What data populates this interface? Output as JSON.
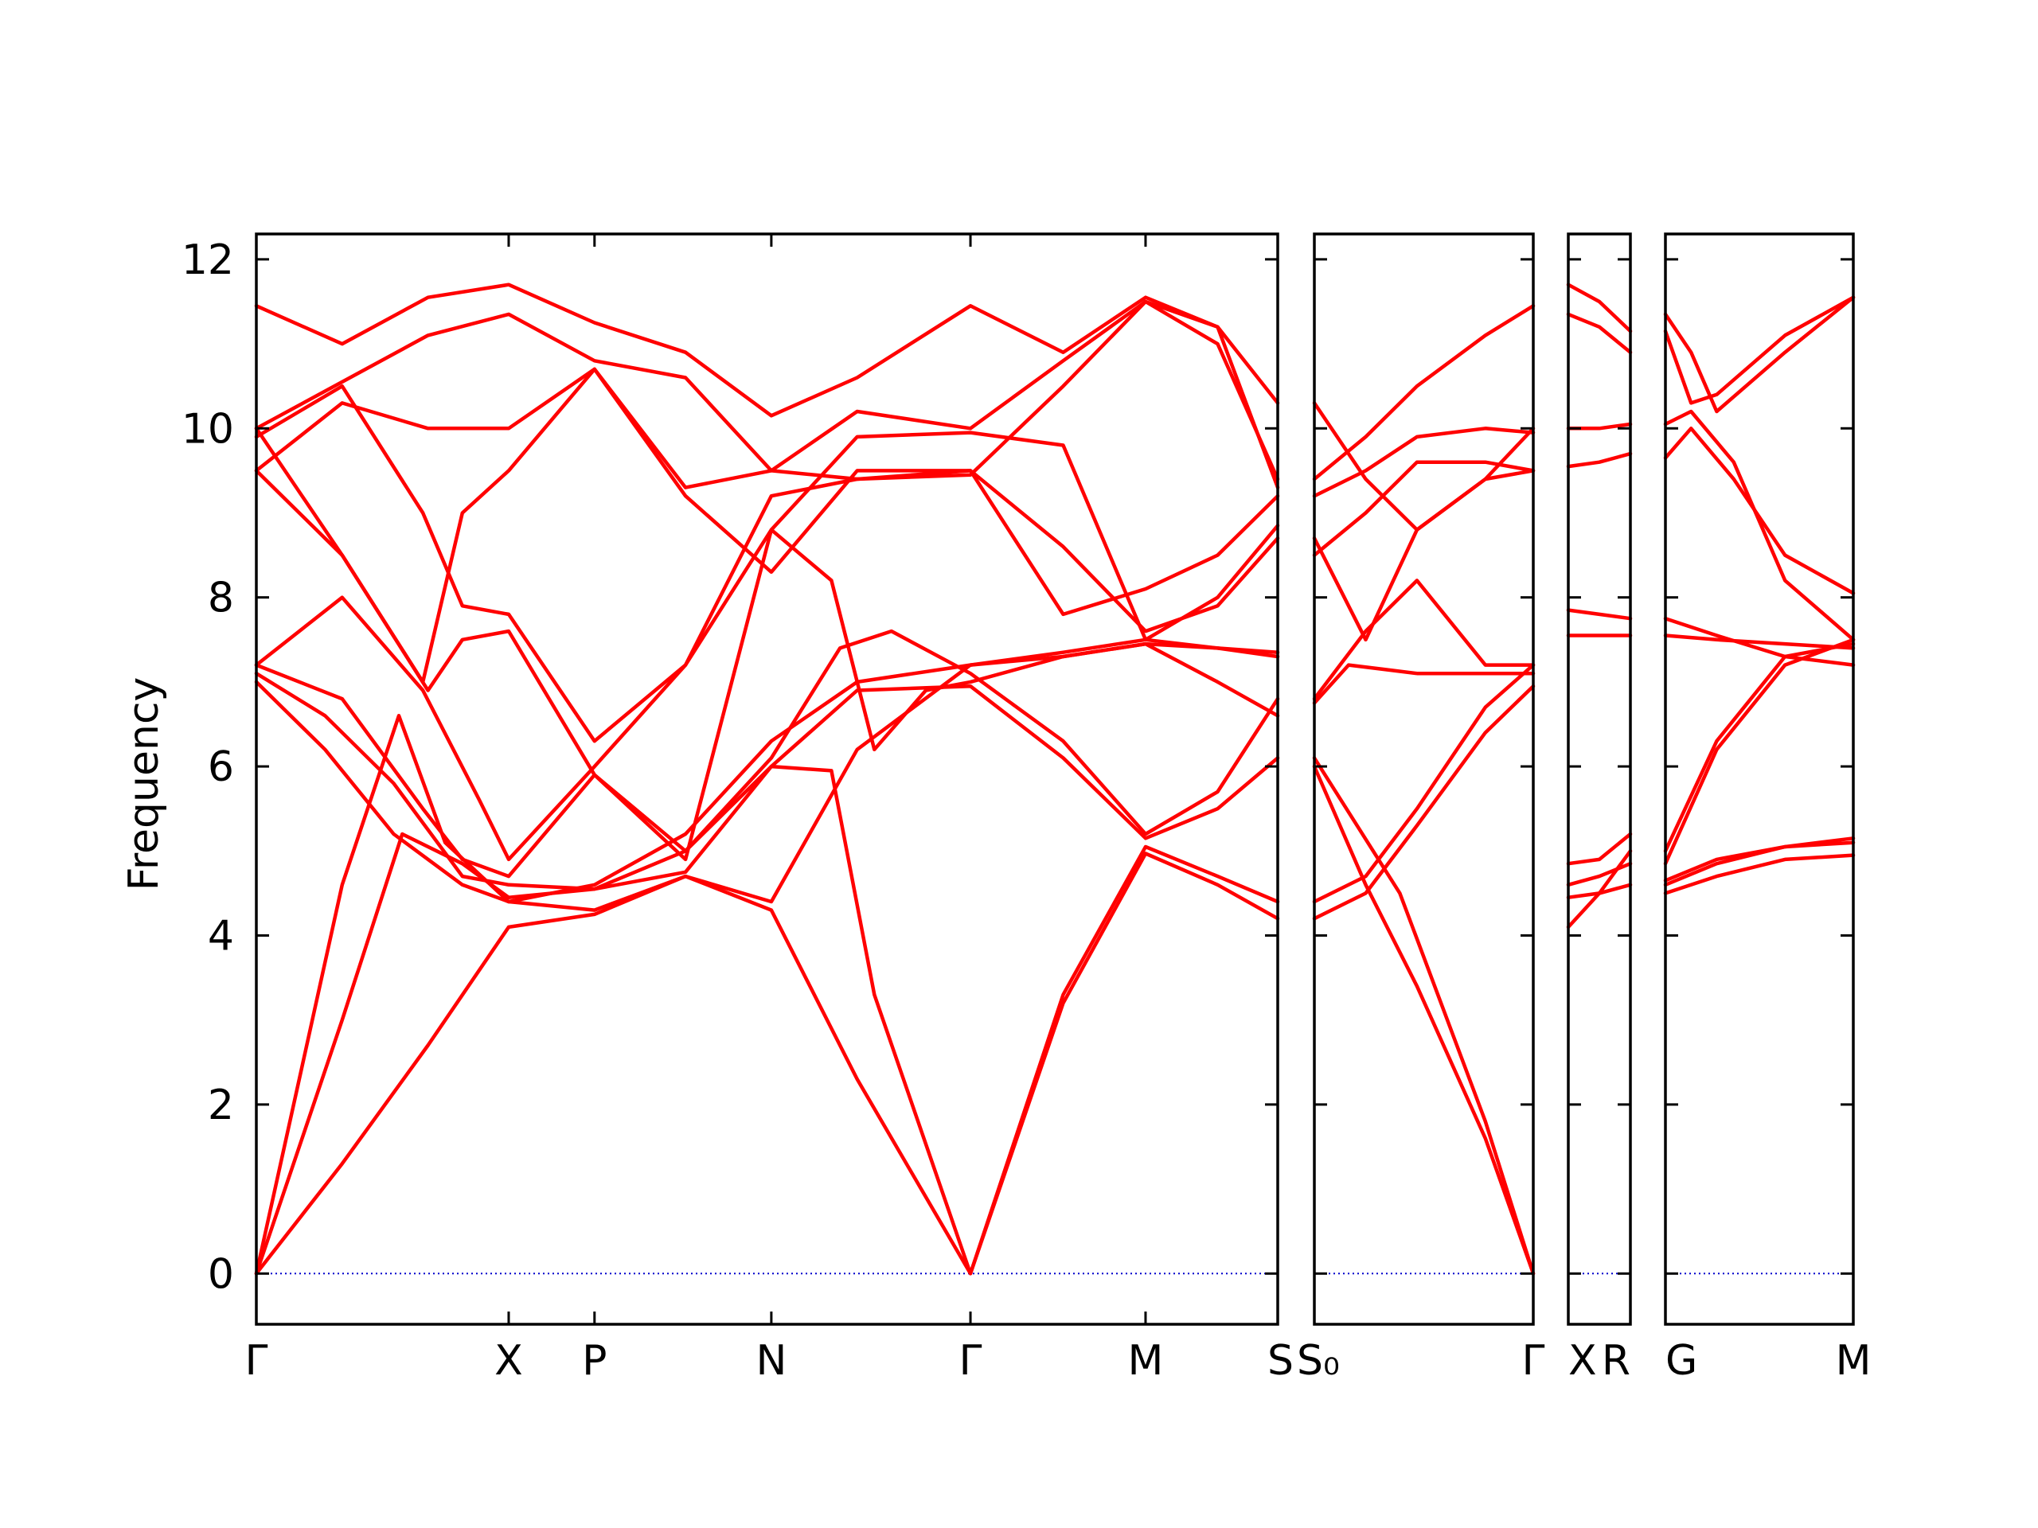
{
  "chart_data": {
    "type": "line",
    "ylabel": "Frequency",
    "ylim": [
      -0.6,
      12.3
    ],
    "yticks": [
      0,
      2,
      4,
      6,
      8,
      10,
      12
    ],
    "ytick_labels": [
      "0",
      "2",
      "4",
      "6",
      "8",
      "10",
      "12"
    ],
    "grid": false,
    "colors": {
      "bands": "#ff0000",
      "zero_line": "#0000cc",
      "axes": "#000000"
    },
    "panels": [
      {
        "labels": [
          "Γ",
          "X",
          "P",
          "N",
          "Γ",
          "M",
          "S"
        ],
        "label_x": [
          0,
          1.47,
          1.97,
          3.0,
          4.16,
          5.18,
          5.95
        ],
        "xlim": [
          0,
          5.95
        ],
        "bands": [
          {
            "x": [
              0,
              0.5,
              1.0,
              1.47,
              1.97,
              2.5,
              3.0,
              3.5,
              4.16,
              4.7,
              5.18,
              5.6,
              5.95
            ],
            "y": [
              0,
              1.3,
              2.7,
              4.1,
              4.25,
              4.7,
              4.3,
              2.3,
              0,
              3.2,
              4.97,
              4.6,
              4.2
            ]
          },
          {
            "x": [
              0,
              0.5,
              0.85,
              1.2,
              1.47,
              1.97,
              2.5,
              3.0,
              3.35,
              3.6,
              4.16,
              4.7,
              5.18,
              5.6,
              5.95
            ],
            "y": [
              0,
              3.0,
              5.2,
              4.85,
              4.45,
              4.55,
              5.0,
              6.0,
              5.95,
              3.3,
              0,
              3.3,
              5.05,
              4.7,
              4.4
            ]
          },
          {
            "x": [
              0,
              0.5,
              0.83,
              1.1,
              1.47,
              1.97,
              2.5,
              3.0,
              3.5,
              4.16,
              4.7,
              5.18,
              5.6,
              5.95
            ],
            "y": [
              0,
              4.6,
              6.6,
              5.1,
              4.4,
              4.6,
              5.2,
              6.3,
              7.0,
              7.2,
              7.35,
              7.5,
              7.4,
              7.3
            ]
          },
          {
            "x": [
              0,
              0.4,
              0.8,
              1.2,
              1.47,
              1.97,
              2.5,
              3.0,
              3.5,
              4.16,
              4.7,
              5.18,
              5.6,
              5.95
            ],
            "y": [
              7.0,
              6.2,
              5.2,
              4.6,
              4.4,
              4.3,
              4.7,
              4.4,
              6.2,
              7.2,
              7.3,
              7.45,
              7.4,
              7.35
            ]
          },
          {
            "x": [
              0,
              0.4,
              0.8,
              1.2,
              1.47,
              1.97,
              2.5,
              3.0,
              3.5,
              4.16,
              4.7,
              5.18,
              5.6,
              5.95
            ],
            "y": [
              7.1,
              6.6,
              5.8,
              4.7,
              4.6,
              4.55,
              4.75,
              6.0,
              6.9,
              6.95,
              6.1,
              5.15,
              5.5,
              6.1
            ]
          },
          {
            "x": [
              0,
              0.5,
              0.97,
              1.2,
              1.47,
              1.97,
              2.5,
              3.0,
              3.4,
              3.7,
              4.16,
              4.7,
              5.18,
              5.6,
              5.95
            ],
            "y": [
              7.2,
              6.8,
              5.5,
              4.9,
              4.7,
              5.9,
              5.0,
              6.1,
              7.4,
              7.6,
              7.1,
              6.3,
              5.2,
              5.7,
              6.8
            ]
          },
          {
            "x": [
              0,
              0.5,
              0.97,
              1.3,
              1.47,
              1.97,
              2.5,
              3.0,
              3.35,
              3.6,
              3.9,
              4.16,
              4.7,
              5.18,
              5.6,
              5.95
            ],
            "y": [
              7.2,
              8.0,
              6.9,
              5.6,
              4.9,
              6.0,
              7.2,
              8.8,
              8.2,
              6.2,
              6.9,
              7.0,
              7.3,
              7.45,
              7.0,
              6.6
            ]
          },
          {
            "x": [
              0,
              0.5,
              1.0,
              1.2,
              1.47,
              1.97,
              2.5,
              3.0,
              3.5,
              4.16,
              4.7,
              5.18,
              5.6,
              5.95
            ],
            "y": [
              9.5,
              8.5,
              6.9,
              7.5,
              7.6,
              5.9,
              4.9,
              8.8,
              9.9,
              9.95,
              9.8,
              7.5,
              8.0,
              8.85
            ]
          },
          {
            "x": [
              0,
              0.5,
              0.97,
              1.2,
              1.47,
              1.97,
              2.5,
              3.0,
              3.5,
              4.16,
              4.7,
              5.18,
              5.6,
              5.95
            ],
            "y": [
              10.0,
              8.5,
              7.0,
              9.0,
              9.5,
              10.7,
              9.2,
              8.3,
              9.5,
              9.5,
              8.6,
              7.6,
              7.9,
              8.7
            ]
          },
          {
            "x": [
              0,
              0.5,
              0.97,
              1.2,
              1.47,
              1.97,
              2.5,
              3.0,
              3.5,
              4.16,
              4.7,
              5.18,
              5.6,
              5.95
            ],
            "y": [
              9.9,
              10.5,
              9.0,
              7.9,
              7.8,
              6.3,
              7.2,
              9.2,
              9.4,
              9.45,
              10.5,
              11.5,
              11.2,
              9.3
            ]
          },
          {
            "x": [
              0,
              0.5,
              1.0,
              1.2,
              1.47,
              1.97,
              2.5,
              3.0,
              3.5,
              4.16,
              4.7,
              5.18,
              5.6,
              5.95
            ],
            "y": [
              9.5,
              10.3,
              10.0,
              10.0,
              10.0,
              10.7,
              9.3,
              9.5,
              10.2,
              10.0,
              10.8,
              11.5,
              11.0,
              9.4
            ]
          },
          {
            "x": [
              0,
              0.5,
              1.0,
              1.47,
              1.97,
              2.5,
              3.0,
              3.5,
              4.16,
              4.7,
              5.18,
              5.6,
              5.95
            ],
            "y": [
              10.0,
              10.55,
              11.1,
              11.35,
              10.8,
              10.6,
              9.5,
              9.4,
              9.5,
              7.8,
              8.1,
              8.5,
              9.2
            ]
          },
          {
            "x": [
              0,
              0.5,
              1.0,
              1.47,
              1.97,
              2.5,
              3.0,
              3.5,
              4.16,
              4.7,
              5.18,
              5.6,
              5.95
            ],
            "y": [
              11.45,
              11.0,
              11.55,
              11.7,
              11.25,
              10.9,
              10.15,
              10.6,
              11.45,
              10.9,
              11.55,
              11.2,
              10.3
            ]
          }
        ]
      },
      {
        "labels": [
          "S₀",
          "Γ"
        ],
        "label_x": [
          0,
          1.28
        ],
        "xlim": [
          0,
          1.28
        ],
        "bands": [
          {
            "x": [
              0,
              0.5,
              1.0,
              1.28
            ],
            "y": [
              6.1,
              4.5,
              1.8,
              0
            ]
          },
          {
            "x": [
              0,
              0.3,
              0.6,
              1.0,
              1.28
            ],
            "y": [
              6.0,
              4.6,
              3.4,
              1.6,
              0
            ]
          },
          {
            "x": [
              0,
              0.3,
              0.6,
              1.0,
              1.28
            ],
            "y": [
              4.2,
              4.5,
              5.3,
              6.4,
              6.95
            ]
          },
          {
            "x": [
              0,
              0.3,
              0.6,
              1.0,
              1.28
            ],
            "y": [
              4.4,
              4.7,
              5.5,
              6.7,
              7.2
            ]
          },
          {
            "x": [
              0,
              0.2,
              0.4,
              0.6,
              1.0,
              1.28
            ],
            "y": [
              6.75,
              7.2,
              7.15,
              7.1,
              7.1,
              7.1
            ]
          },
          {
            "x": [
              0,
              0.3,
              0.6,
              1.0,
              1.28
            ],
            "y": [
              6.8,
              7.6,
              8.2,
              7.2,
              7.2
            ]
          },
          {
            "x": [
              0,
              0.3,
              0.6,
              1.0,
              1.28
            ],
            "y": [
              8.7,
              7.5,
              8.8,
              9.4,
              9.5
            ]
          },
          {
            "x": [
              0,
              0.3,
              0.6,
              1.0,
              1.28
            ],
            "y": [
              8.5,
              9.0,
              9.6,
              9.6,
              9.5
            ]
          },
          {
            "x": [
              0,
              0.3,
              0.6,
              1.0,
              1.28
            ],
            "y": [
              9.2,
              9.5,
              9.9,
              10.0,
              9.95
            ]
          },
          {
            "x": [
              0,
              0.3,
              0.6,
              1.0,
              1.28
            ],
            "y": [
              10.3,
              9.4,
              8.8,
              9.4,
              10.0
            ]
          },
          {
            "x": [
              0,
              0.3,
              0.6,
              1.0,
              1.28
            ],
            "y": [
              9.4,
              9.9,
              10.5,
              11.1,
              11.45
            ]
          }
        ]
      },
      {
        "labels": [
          "X",
          "R"
        ],
        "label_x": [
          0,
          0.36
        ],
        "xlim": [
          0,
          0.36
        ],
        "bands": [
          {
            "x": [
              0,
              0.18,
              0.36
            ],
            "y": [
              4.1,
              4.5,
              5.0
            ]
          },
          {
            "x": [
              0,
              0.18,
              0.36
            ],
            "y": [
              4.45,
              4.5,
              4.6
            ]
          },
          {
            "x": [
              0,
              0.18,
              0.36
            ],
            "y": [
              4.6,
              4.7,
              4.85
            ]
          },
          {
            "x": [
              0,
              0.18,
              0.36
            ],
            "y": [
              4.85,
              4.9,
              5.2
            ]
          },
          {
            "x": [
              0,
              0.18,
              0.36
            ],
            "y": [
              7.55,
              7.55,
              7.55
            ]
          },
          {
            "x": [
              0,
              0.18,
              0.36
            ],
            "y": [
              7.85,
              7.8,
              7.75
            ]
          },
          {
            "x": [
              0,
              0.18,
              0.36
            ],
            "y": [
              9.55,
              9.6,
              9.7
            ]
          },
          {
            "x": [
              0,
              0.18,
              0.36
            ],
            "y": [
              10.0,
              10.0,
              10.05
            ]
          },
          {
            "x": [
              0,
              0.18,
              0.36
            ],
            "y": [
              11.35,
              11.2,
              10.9
            ]
          },
          {
            "x": [
              0,
              0.18,
              0.36
            ],
            "y": [
              11.7,
              11.5,
              11.15
            ]
          }
        ]
      },
      {
        "labels": [
          "G",
          "M"
        ],
        "label_x": [
          0,
          1.1
        ],
        "xlim": [
          0,
          1.1
        ],
        "bands": [
          {
            "x": [
              0,
              0.3,
              0.7,
              1.1
            ],
            "y": [
              4.5,
              4.7,
              4.9,
              4.95
            ]
          },
          {
            "x": [
              0,
              0.3,
              0.7,
              1.1
            ],
            "y": [
              4.6,
              4.85,
              5.05,
              5.1
            ]
          },
          {
            "x": [
              0,
              0.3,
              0.7,
              1.1
            ],
            "y": [
              4.65,
              4.9,
              5.05,
              5.15
            ]
          },
          {
            "x": [
              0,
              0.3,
              0.7,
              1.1
            ],
            "y": [
              4.85,
              6.2,
              7.2,
              7.5
            ]
          },
          {
            "x": [
              0,
              0.3,
              0.7,
              1.1
            ],
            "y": [
              5.0,
              6.3,
              7.3,
              7.45
            ]
          },
          {
            "x": [
              0,
              0.3,
              0.7,
              1.1
            ],
            "y": [
              7.55,
              7.5,
              7.45,
              7.4
            ]
          },
          {
            "x": [
              0,
              0.3,
              0.7,
              1.1
            ],
            "y": [
              7.75,
              7.55,
              7.3,
              7.2
            ]
          },
          {
            "x": [
              0,
              0.15,
              0.4,
              0.7,
              1.1
            ],
            "y": [
              9.65,
              10.0,
              9.4,
              8.5,
              8.05
            ]
          },
          {
            "x": [
              0,
              0.15,
              0.4,
              0.7,
              1.1
            ],
            "y": [
              10.05,
              10.2,
              9.6,
              8.2,
              7.5
            ]
          },
          {
            "x": [
              0,
              0.15,
              0.3,
              0.7,
              1.1
            ],
            "y": [
              11.15,
              10.3,
              10.4,
              11.1,
              11.55
            ]
          },
          {
            "x": [
              0,
              0.15,
              0.3,
              0.7,
              1.1
            ],
            "y": [
              11.35,
              10.9,
              10.2,
              10.9,
              11.55
            ]
          }
        ]
      }
    ]
  }
}
